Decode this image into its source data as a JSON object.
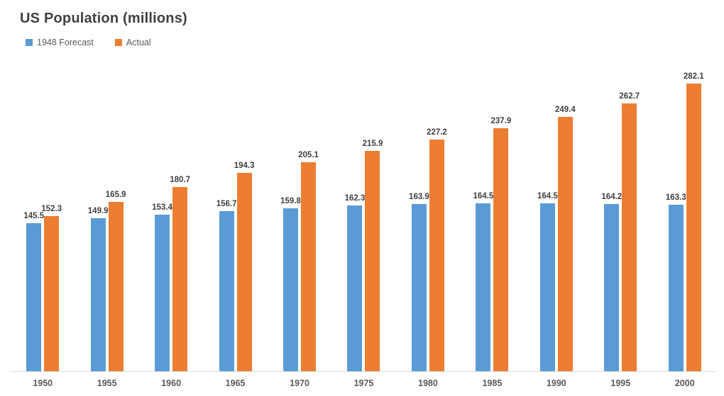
{
  "title": "US Population (millions)",
  "colors": {
    "forecast": "#5B9BD5",
    "actual": "#ED7D31",
    "title_text": "#404040",
    "legend_text": "#595959",
    "axis_line": "#D9D9D9",
    "data_label_text": "#404040",
    "axis_label_text": "#595959",
    "background": "#FFFFFF"
  },
  "legend": {
    "items": [
      {
        "label": "1948 Forecast",
        "color": "#5B9BD5"
      },
      {
        "label": "Actual",
        "color": "#ED7D31"
      }
    ]
  },
  "chart_data": {
    "type": "bar",
    "title": "US Population (millions)",
    "xlabel": "",
    "ylabel": "",
    "categories": [
      "1950",
      "1955",
      "1960",
      "1965",
      "1970",
      "1975",
      "1980",
      "1985",
      "1990",
      "1995",
      "2000"
    ],
    "series": [
      {
        "name": "1948 Forecast",
        "color": "#5B9BD5",
        "values": [
          145.5,
          149.9,
          153.4,
          156.7,
          159.8,
          162.3,
          163.9,
          164.5,
          164.5,
          164.2,
          163.3
        ]
      },
      {
        "name": "Actual",
        "color": "#ED7D31",
        "values": [
          152.3,
          165.9,
          180.7,
          194.3,
          205.1,
          215.9,
          227.2,
          237.9,
          249.4,
          262.7,
          282.1
        ]
      }
    ],
    "ylim": [
      0,
      300
    ],
    "grid": false,
    "y_axis_visible": false,
    "x_axis_visible": true,
    "data_labels": "outside-end",
    "legend_position": "top-left"
  }
}
